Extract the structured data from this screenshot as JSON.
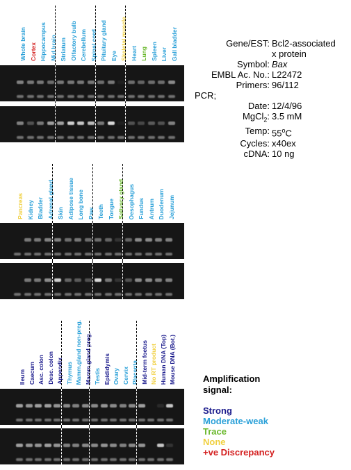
{
  "colors": {
    "strong": "#1a1a8c",
    "moderate": "#2aa0d8",
    "trace": "#6ab82c",
    "none": "#f0d040",
    "discrepancy": "#d42020"
  },
  "panels": [
    {
      "lanes": [
        {
          "label": "Whole brain",
          "level": "moderate"
        },
        {
          "label": "Cortex",
          "level": "discrepancy"
        },
        {
          "label": "Hippocampus",
          "level": "moderate"
        },
        {
          "label": "Mid brain",
          "level": "moderate"
        },
        {
          "label": "Striatum",
          "level": "moderate"
        },
        {
          "label": "Olfactory bulb",
          "level": "moderate"
        },
        {
          "label": "Cerebellum",
          "level": "moderate"
        },
        {
          "label": "Spinal cord",
          "level": "moderate"
        },
        {
          "label": "Pituitary gland",
          "level": "moderate"
        },
        {
          "label": "Eye",
          "level": "moderate"
        },
        {
          "label": "Skeletal muscle",
          "level": "none"
        },
        {
          "label": "Heart",
          "level": "moderate"
        },
        {
          "label": "Lung",
          "level": "trace"
        },
        {
          "label": "Spleen",
          "level": "moderate"
        },
        {
          "label": "Liver",
          "level": "moderate"
        },
        {
          "label": "Gall bladder",
          "level": "moderate"
        }
      ]
    },
    {
      "lanes": [
        {
          "label": "Pancreas",
          "level": "none"
        },
        {
          "label": "Kidney",
          "level": "moderate"
        },
        {
          "label": "Bladder",
          "level": "moderate"
        },
        {
          "label": "Adrenal gland",
          "level": "moderate"
        },
        {
          "label": "Skin",
          "level": "moderate"
        },
        {
          "label": "Adipose tissue",
          "level": "moderate"
        },
        {
          "label": "Long bone",
          "level": "moderate"
        },
        {
          "label": "Paw",
          "level": "moderate"
        },
        {
          "label": "Teeth",
          "level": "moderate"
        },
        {
          "label": "Tongue",
          "level": "moderate"
        },
        {
          "label": "Salivary gland",
          "level": "trace"
        },
        {
          "label": "Oesophagus",
          "level": "moderate"
        },
        {
          "label": "Fundus",
          "level": "moderate"
        },
        {
          "label": "Antrum",
          "level": "moderate"
        },
        {
          "label": "Duodenum",
          "level": "moderate"
        },
        {
          "label": "Jejunum",
          "level": "moderate"
        }
      ]
    },
    {
      "lanes": [
        {
          "label": "Ileum",
          "level": "strong"
        },
        {
          "label": "Caecum",
          "level": "strong"
        },
        {
          "label": "Asc. colon",
          "level": "strong"
        },
        {
          "label": "Desc. colon",
          "level": "strong"
        },
        {
          "label": "Appendix",
          "level": "strong"
        },
        {
          "label": "Thymus",
          "level": "moderate"
        },
        {
          "label": "Mamm.gland non-preg.",
          "level": "moderate"
        },
        {
          "label": "Mamm.gland preg.",
          "level": "strong"
        },
        {
          "label": "Testis",
          "level": "moderate"
        },
        {
          "label": "Epididymis",
          "level": "strong"
        },
        {
          "label": "Ovary",
          "level": "moderate"
        },
        {
          "label": "Cervix",
          "level": "moderate"
        },
        {
          "label": "Placenta",
          "level": "moderate"
        },
        {
          "label": "Mid-term foetus",
          "level": "strong"
        },
        {
          "label": "No RT product",
          "level": "none"
        },
        {
          "label": "Human DNA (Top)",
          "level": "strong"
        },
        {
          "label": "Mouse DNA (Bot.)",
          "level": "strong"
        }
      ]
    }
  ],
  "gel_intensity": [
    {
      "top": [
        0.55,
        0.5,
        0.5,
        0.45,
        0.5,
        0.5,
        0.5,
        0.5,
        0.45,
        0.5,
        0.05,
        0.45,
        0.4,
        0.45,
        0.45,
        0.6
      ],
      "bottom": [
        0.55,
        0.3,
        0.5,
        0.7,
        0.7,
        0.95,
        0.9,
        0.85,
        0.5,
        1.0,
        0.05,
        0.3,
        0.25,
        0.35,
        0.3,
        0.55
      ]
    },
    {
      "top": [
        0.0,
        0.5,
        0.5,
        0.55,
        0.55,
        0.45,
        0.5,
        0.45,
        0.45,
        0.4,
        0.15,
        0.4,
        0.6,
        0.6,
        0.55,
        0.55
      ],
      "bottom": [
        0.0,
        0.5,
        0.5,
        0.6,
        0.95,
        0.4,
        0.35,
        0.3,
        1.0,
        0.5,
        0.15,
        0.3,
        0.6,
        0.6,
        0.55,
        0.55
      ]
    },
    {
      "top": [
        0.7,
        0.65,
        0.7,
        0.7,
        0.65,
        0.6,
        0.55,
        0.6,
        0.6,
        0.65,
        0.6,
        0.55,
        0.6,
        0.7,
        0.0,
        0.1,
        0.9
      ],
      "bottom": [
        0.7,
        0.65,
        0.65,
        0.7,
        0.65,
        0.55,
        0.55,
        0.6,
        0.6,
        0.65,
        0.6,
        0.55,
        0.6,
        0.65,
        0.0,
        0.9,
        0.15
      ]
    }
  ],
  "info": {
    "gene_key": "Gene/EST:",
    "gene_val_line1": "Bcl2-associated",
    "gene_val_line2": "x protein",
    "symbol_key": "Symbol:",
    "symbol_val": "Bax",
    "embl_key": "EMBL Ac. No.:",
    "embl_val": "L22472",
    "primers_key": "Primers:",
    "primers_val": "96/112",
    "pcr_key": "PCR;",
    "date_key": "Date:",
    "date_val": "12/4/96",
    "mgcl_key_main": "MgCl",
    "mgcl_key_sub": "2",
    "mgcl_key_colon": ":",
    "mgcl_val": "3.5 mM",
    "temp_key": "Temp:",
    "temp_val_num": "55",
    "temp_val_sup": "o",
    "temp_val_unit": "C",
    "cycles_key": "Cycles:",
    "cycles_val": "x40ex",
    "cdna_key": "cDNA:",
    "cdna_val": "10 ng"
  },
  "legend": {
    "title_line1": "Amplification",
    "title_line2": "signal:",
    "strong": "Strong",
    "moderate": "Moderate-weak",
    "trace": "Trace",
    "none": "None",
    "discrepancy": "+ve Discrepancy"
  }
}
